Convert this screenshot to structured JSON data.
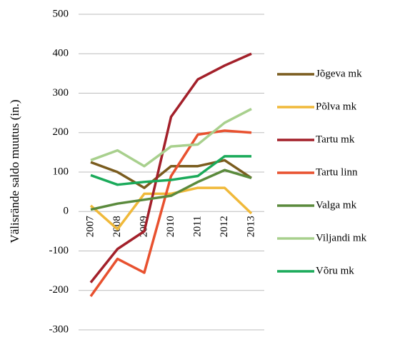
{
  "chart_data": {
    "type": "line",
    "y_label": "Välisrände saldo muutus (in.)",
    "categories": [
      "2007",
      "2008",
      "2009",
      "2010",
      "2011",
      "2012",
      "2013"
    ],
    "series": [
      {
        "name": "Jõgeva mk",
        "color": "#7a5c1e",
        "values": [
          125,
          100,
          60,
          115,
          115,
          130,
          85
        ]
      },
      {
        "name": "Põlva mk",
        "color": "#f0b93a",
        "values": [
          15,
          -45,
          45,
          45,
          60,
          60,
          -5
        ]
      },
      {
        "name": "Tartu mk",
        "color": "#a3202a",
        "values": [
          -180,
          -95,
          -50,
          240,
          335,
          370,
          400
        ]
      },
      {
        "name": "Tartu linn",
        "color": "#e8512f",
        "values": [
          -215,
          -120,
          -155,
          90,
          195,
          205,
          200
        ]
      },
      {
        "name": "Valga mk",
        "color": "#5a8a3c",
        "values": [
          5,
          20,
          30,
          40,
          75,
          105,
          85
        ]
      },
      {
        "name": "Viljandi mk",
        "color": "#a8d08d",
        "values": [
          130,
          155,
          115,
          165,
          170,
          225,
          260
        ]
      },
      {
        "name": "Võru mk",
        "color": "#1aaa5a",
        "values": [
          92,
          68,
          75,
          80,
          90,
          140,
          140
        ]
      }
    ],
    "ylim": [
      -300,
      500
    ],
    "yticks": [
      -300,
      -200,
      -100,
      0,
      100,
      200,
      300,
      400,
      500
    ],
    "grid": true
  }
}
